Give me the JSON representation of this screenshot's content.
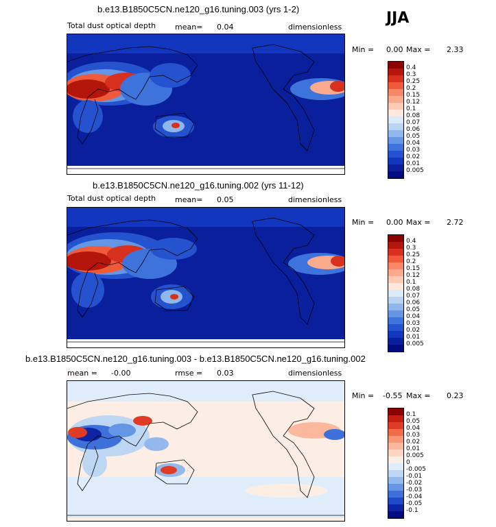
{
  "season": "JJA",
  "panels": [
    {
      "title": "b.e13.B1850C5CN.ne120_g16.tuning.003 (yrs 1-2)",
      "variable": "Total dust optical depth",
      "mean_label": "mean=",
      "mean_value": "0.04",
      "units": "dimensionless",
      "min_label": "Min =",
      "min_value": "0.00",
      "max_label": "Max =",
      "max_value": "2.33"
    },
    {
      "title": "b.e13.B1850C5CN.ne120_g16.tuning.002 (yrs 11-12)",
      "variable": "Total dust optical depth",
      "mean_label": "mean=",
      "mean_value": "0.05",
      "units": "dimensionless",
      "min_label": "Min =",
      "min_value": "0.00",
      "max_label": "Max =",
      "max_value": "2.72"
    },
    {
      "title": "b.e13.B1850C5CN.ne120_g16.tuning.003 - b.e13.B1850C5CN.ne120_g16.tuning.002",
      "mean_label": "mean =",
      "mean_value": "-0.00",
      "rmse_label": "rmse =",
      "rmse_value": "0.03",
      "units": "dimensionless",
      "min_label": "Min =",
      "min_value": "-0.55",
      "max_label": "Max =",
      "max_value": "0.23"
    }
  ],
  "colorbar_abs": {
    "labels": [
      "0.4",
      "0.3",
      "0.25",
      "0.2",
      "0.15",
      "0.12",
      "0.1",
      "0.08",
      "0.07",
      "0.06",
      "0.05",
      "0.04",
      "0.03",
      "0.02",
      "0.01",
      "0.005"
    ],
    "colors": [
      "#8b0000",
      "#b5160c",
      "#d7301f",
      "#ef5b3a",
      "#f78766",
      "#fbaa8d",
      "#fdcbb3",
      "#fee8dc",
      "#dceaf8",
      "#b8d4f2",
      "#8fb7ec",
      "#6496e4",
      "#3d73db",
      "#2553cf",
      "#1236bd",
      "#0a1f9c",
      "#000c80"
    ]
  },
  "colorbar_diff": {
    "labels": [
      "0.1",
      "0.05",
      "0.04",
      "0.03",
      "0.02",
      "0.01",
      "0.005",
      "0",
      "-0.005",
      "-0.01",
      "-0.02",
      "-0.03",
      "-0.04",
      "-0.05",
      "-0.1"
    ],
    "colors": [
      "#8b0000",
      "#c21e11",
      "#e03b24",
      "#f26a48",
      "#f99474",
      "#fbb89c",
      "#fdd5c1",
      "#fdeee5",
      "#dfedfb",
      "#bcd6f3",
      "#93b8ec",
      "#6596e3",
      "#3e70d9",
      "#1f49c6",
      "#0d25a5",
      "#000c80"
    ]
  }
}
